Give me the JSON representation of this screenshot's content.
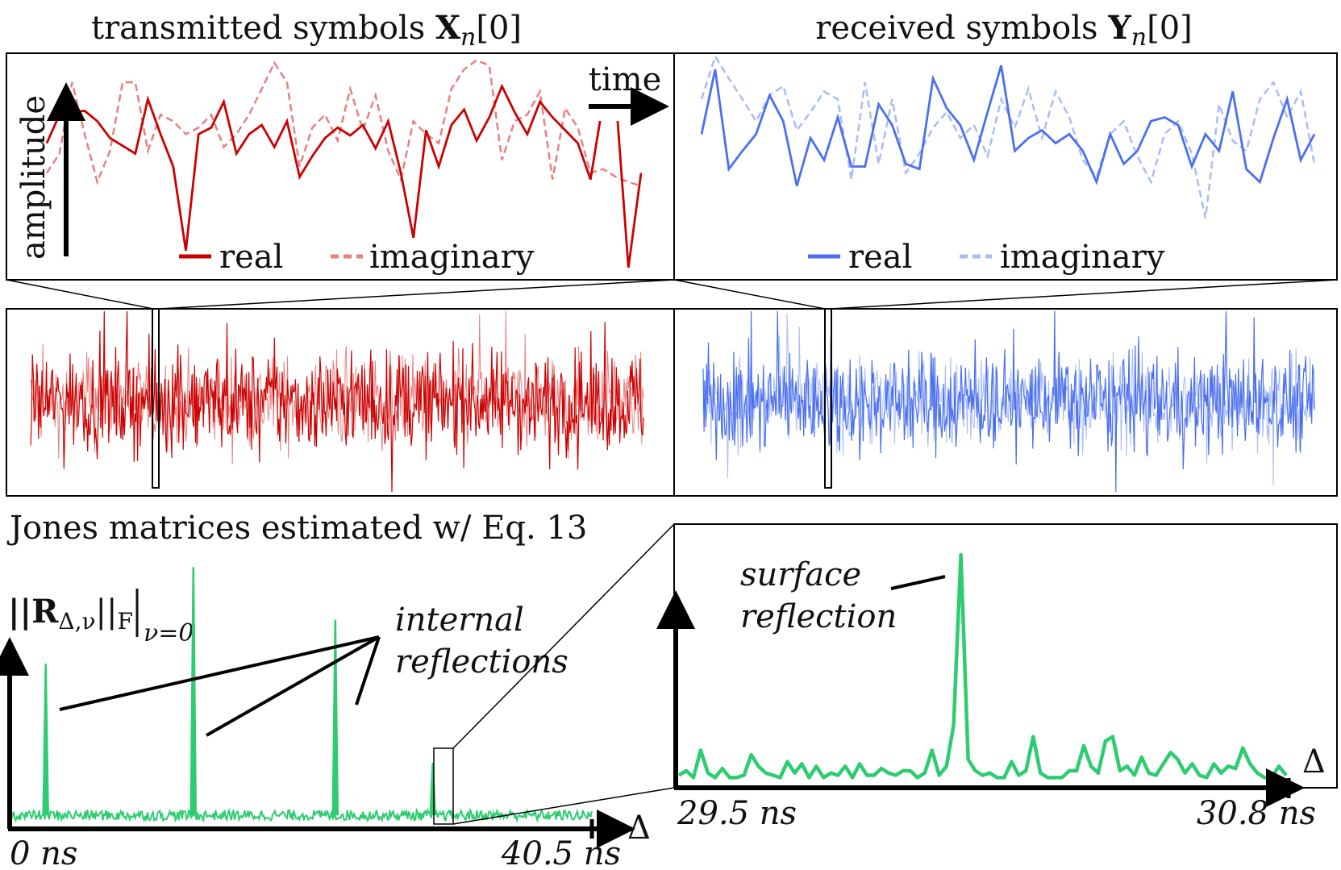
{
  "colors": {
    "tx_real": "#cc0000",
    "tx_imag": "#e88080",
    "rx_real": "#4a6ff0",
    "rx_imag": "#a9bcf6",
    "jones": "#2ecc71",
    "axis": "#000000"
  },
  "top_left": {
    "title_prefix": "transmitted symbols ",
    "title_symbol": "X",
    "title_sub": "n",
    "title_suffix": "[0]",
    "ylabel": "amplitude",
    "time_label": "time",
    "legend_real": "real",
    "legend_imag": "imaginary"
  },
  "top_right": {
    "title_prefix": "received symbols ",
    "title_symbol": "Y",
    "title_sub": "n",
    "title_suffix": "[0]",
    "legend_real": "real",
    "legend_imag": "imaginary"
  },
  "bottom": {
    "title": "Jones matrices estimated w/ Eq. 13",
    "ylabel_main": "||R",
    "ylabel_sub": "Δ,ν",
    "ylabel_norm": "||",
    "ylabel_F": "F",
    "ylabel_eval": "ν=0",
    "annot_internal_1": "internal",
    "annot_internal_2": "reflections",
    "annot_surface_1": "surface",
    "annot_surface_2": "reflection",
    "delta_label": "Δ",
    "x_start": "0 ns",
    "x_end": "40.5 ns",
    "zoom_x_start": "29.5 ns",
    "zoom_x_end": "30.8 ns"
  },
  "chart_data": [
    {
      "type": "line",
      "panel": "transmitted symbols zoom",
      "series": [
        {
          "name": "real",
          "values": [
            0.38,
            0.6,
            0.62,
            0.63,
            0.55,
            0.42,
            0.36,
            0.3,
            0.72,
            0.45,
            0.2,
            -0.45,
            0.45,
            0.5,
            0.7,
            0.3,
            0.45,
            0.52,
            0.35,
            0.55,
            0.12,
            0.28,
            0.42,
            0.5,
            0.44,
            0.52,
            0.34,
            0.55,
            0.15,
            -0.35,
            0.48,
            0.2,
            0.52,
            0.64,
            0.4,
            0.58,
            0.82,
            0.62,
            0.45,
            0.7,
            0.58,
            0.48,
            0.38,
            0.1,
            0.7,
            0.75,
            -0.58,
            0.15
          ]
        },
        {
          "name": "imaginary",
          "values": [
            0.15,
            0.3,
            0.85,
            0.45,
            0.08,
            0.32,
            0.85,
            0.85,
            0.32,
            0.6,
            0.55,
            0.45,
            0.5,
            0.6,
            0.35,
            0.45,
            0.6,
            0.8,
            1.0,
            0.85,
            0.2,
            0.5,
            0.6,
            0.4,
            0.8,
            0.48,
            0.75,
            0.32,
            0.1,
            0.55,
            0.45,
            0.38,
            0.8,
            0.95,
            1.02,
            0.98,
            0.25,
            0.55,
            0.6,
            0.78,
            0.1,
            0.65,
            0.5,
            0.15,
            0.18,
            0.12,
            0.08,
            0.05
          ]
        }
      ]
    },
    {
      "type": "line",
      "panel": "received symbols zoom",
      "series": [
        {
          "name": "real",
          "values": [
            0.45,
            0.95,
            0.18,
            0.32,
            0.45,
            0.75,
            0.55,
            0.05,
            0.42,
            0.25,
            0.58,
            0.2,
            0.2,
            0.68,
            0.52,
            0.22,
            0.18,
            0.88,
            0.65,
            0.52,
            0.25,
            0.62,
            0.98,
            0.32,
            0.42,
            0.48,
            0.38,
            0.45,
            0.32,
            0.08,
            0.45,
            0.22,
            0.32,
            0.55,
            0.58,
            0.52,
            0.2,
            0.45,
            0.32,
            0.78,
            0.18,
            0.08,
            0.42,
            0.72,
            0.25,
            0.45
          ]
        },
        {
          "name": "imaginary",
          "values": [
            0.72,
            1.05,
            0.88,
            0.72,
            0.55,
            0.75,
            0.82,
            0.48,
            0.62,
            0.78,
            0.72,
            0.1,
            0.85,
            0.22,
            0.72,
            0.15,
            0.3,
            0.5,
            0.62,
            0.42,
            0.52,
            0.28,
            0.72,
            0.5,
            0.8,
            0.42,
            0.78,
            0.58,
            0.25,
            0.12,
            0.45,
            0.55,
            0.28,
            0.08,
            0.45,
            0.55,
            0.3,
            -0.2,
            0.68,
            0.4,
            0.32,
            0.72,
            0.85,
            0.58,
            0.78,
            0.22
          ]
        }
      ]
    },
    {
      "type": "line",
      "panel": "Jones matrices estimated w/ Eq. 13",
      "x_range": [
        0,
        40.5
      ],
      "x_unit": "ns",
      "peaks": [
        {
          "x": 2.4,
          "y": 0.55
        },
        {
          "x": 12.7,
          "y": 0.88
        },
        {
          "x": 22.6,
          "y": 0.7
        },
        {
          "x": 29.4,
          "y": 0.21
        }
      ],
      "noise_floor": 0.04
    },
    {
      "type": "line",
      "panel": "surface reflection zoom",
      "x_range": [
        29.5,
        30.8
      ],
      "x_unit": "ns",
      "values": [
        0.03,
        0.05,
        0.02,
        0.14,
        0.04,
        0.02,
        0.06,
        0.02,
        0.02,
        0.03,
        0.12,
        0.07,
        0.04,
        0.03,
        0.02,
        0.09,
        0.04,
        0.08,
        0.02,
        0.07,
        0.02,
        0.04,
        0.03,
        0.07,
        0.02,
        0.08,
        0.03,
        0.03,
        0.06,
        0.04,
        0.03,
        0.05,
        0.05,
        0.02,
        0.04,
        0.14,
        0.03,
        0.07,
        0.25,
        1.0,
        0.1,
        0.05,
        0.03,
        0.04,
        0.02,
        0.02,
        0.09,
        0.03,
        0.05,
        0.2,
        0.04,
        0.02,
        0.02,
        0.02,
        0.05,
        0.05,
        0.16,
        0.07,
        0.04,
        0.18,
        0.2,
        0.05,
        0.07,
        0.03,
        0.11,
        0.04,
        0.03,
        0.08,
        0.13,
        0.1,
        0.04,
        0.08,
        0.03,
        0.02,
        0.08,
        0.04,
        0.07,
        0.06,
        0.15,
        0.08,
        0.04,
        0.02,
        0.02,
        0.07,
        0.03
      ]
    }
  ]
}
